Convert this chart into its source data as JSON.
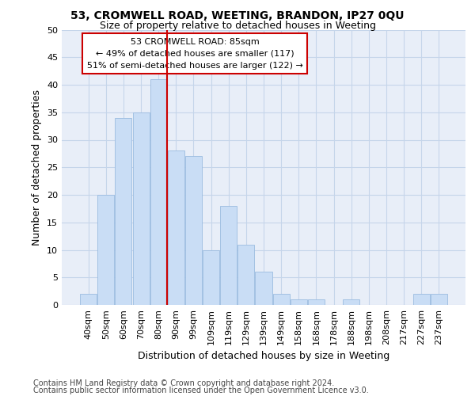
{
  "title1": "53, CROMWELL ROAD, WEETING, BRANDON, IP27 0QU",
  "title2": "Size of property relative to detached houses in Weeting",
  "xlabel": "Distribution of detached houses by size in Weeting",
  "ylabel": "Number of detached properties",
  "categories": [
    "40sqm",
    "50sqm",
    "60sqm",
    "70sqm",
    "80sqm",
    "90sqm",
    "99sqm",
    "109sqm",
    "119sqm",
    "129sqm",
    "139sqm",
    "149sqm",
    "158sqm",
    "168sqm",
    "178sqm",
    "188sqm",
    "198sqm",
    "208sqm",
    "217sqm",
    "227sqm",
    "237sqm"
  ],
  "values": [
    2,
    20,
    34,
    35,
    41,
    28,
    27,
    10,
    18,
    11,
    6,
    2,
    1,
    1,
    0,
    1,
    0,
    0,
    0,
    2,
    2
  ],
  "bar_color": "#c9ddf5",
  "bar_edge_color": "#9bbce0",
  "vline_index": 4.5,
  "vline_color": "#cc0000",
  "annotation_text": "53 CROMWELL ROAD: 85sqm\n← 49% of detached houses are smaller (117)\n51% of semi-detached houses are larger (122) →",
  "annotation_box_color": "#ffffff",
  "annotation_box_edge": "#cc0000",
  "grid_color": "#c5d5ea",
  "background_color": "#e8eef8",
  "ylim": [
    0,
    50
  ],
  "yticks": [
    0,
    5,
    10,
    15,
    20,
    25,
    30,
    35,
    40,
    45,
    50
  ],
  "footer1": "Contains HM Land Registry data © Crown copyright and database right 2024.",
  "footer2": "Contains public sector information licensed under the Open Government Licence v3.0.",
  "title1_fontsize": 10,
  "title2_fontsize": 9,
  "axis_label_fontsize": 9,
  "tick_fontsize": 8,
  "annotation_fontsize": 8,
  "footer_fontsize": 7
}
